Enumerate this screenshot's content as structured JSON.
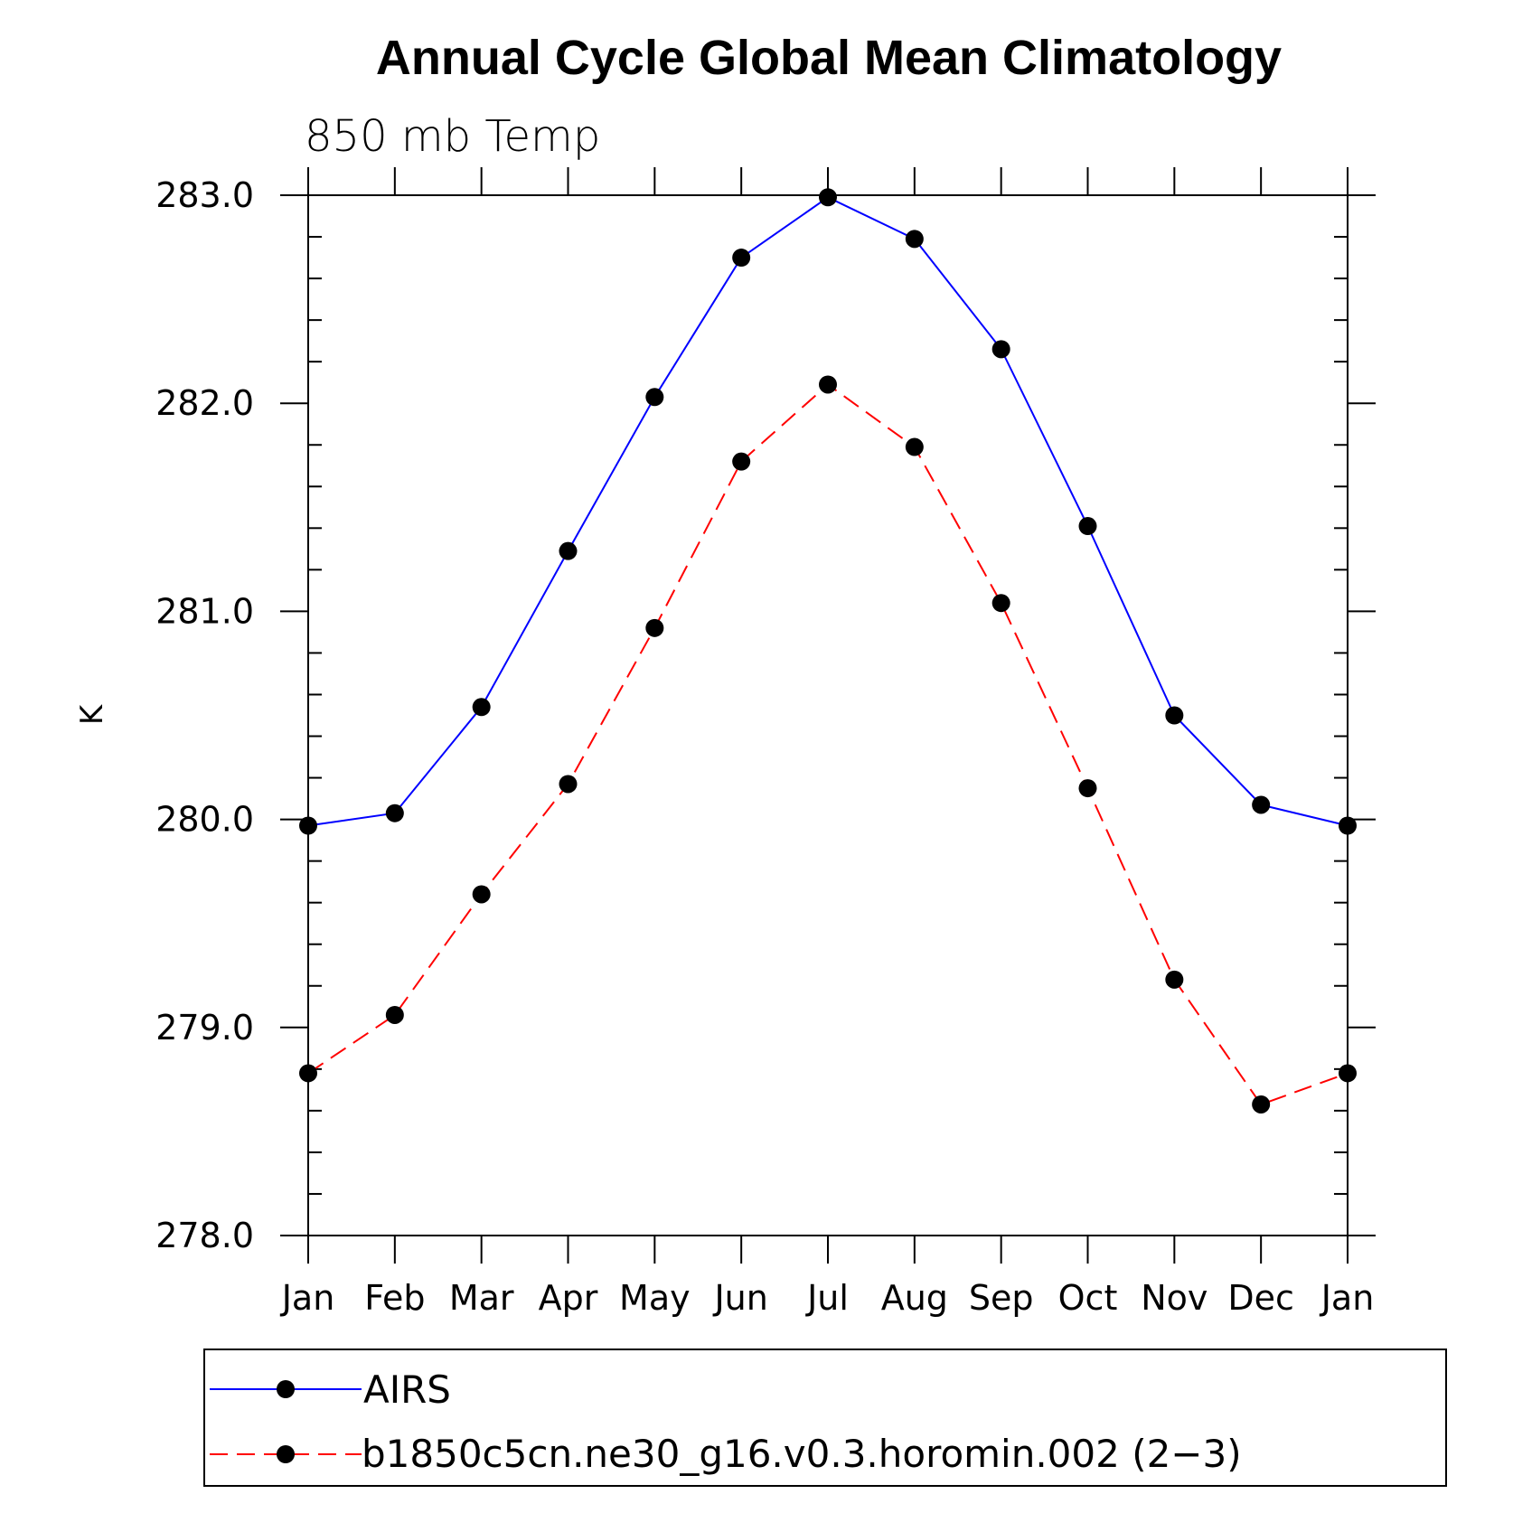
{
  "chart_data": {
    "type": "line",
    "title": "Annual Cycle Global Mean Climatology",
    "subtitle": "850 mb Temp",
    "xlabel": "",
    "ylabel": "K",
    "categories": [
      "Jan",
      "Feb",
      "Mar",
      "Apr",
      "May",
      "Jun",
      "Jul",
      "Aug",
      "Sep",
      "Oct",
      "Nov",
      "Dec",
      "Jan"
    ],
    "ylim": [
      278.0,
      283.0
    ],
    "yticks": [
      "278.0",
      "279.0",
      "280.0",
      "281.0",
      "282.0",
      "283.0"
    ],
    "series": [
      {
        "name": "AIRS",
        "color": "#0000ff",
        "line_style": "solid",
        "marker": "filled-circle",
        "values": [
          279.97,
          280.03,
          280.54,
          281.29,
          282.03,
          282.7,
          282.99,
          282.79,
          282.26,
          281.41,
          280.5,
          280.07,
          279.97
        ]
      },
      {
        "name": "b1850c5cn.ne30_g16.v0.3.horomin.002 (2−3)",
        "color": "#ff0000",
        "line_style": "dashed",
        "marker": "filled-circle",
        "values": [
          278.78,
          279.06,
          279.64,
          280.17,
          280.92,
          281.72,
          282.09,
          281.79,
          281.04,
          280.15,
          279.23,
          278.63,
          278.78
        ]
      }
    ],
    "grid": false,
    "legend_position": "bottom"
  }
}
